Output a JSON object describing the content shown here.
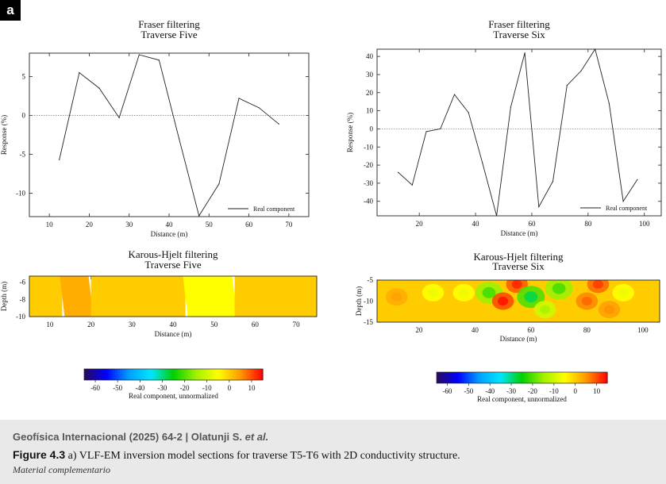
{
  "panel_label": "a",
  "chart_data": [
    {
      "type": "line",
      "title": "Fraser filtering",
      "subtitle": "Traverse Five",
      "xlabel": "Distance (m)",
      "ylabel": "Response (%)",
      "xlim": [
        5,
        75
      ],
      "ylim": [
        -13,
        8
      ],
      "xticks": [
        10,
        20,
        30,
        40,
        50,
        60,
        70
      ],
      "yticks": [
        5,
        0,
        -5,
        -10
      ],
      "zero_line": true,
      "legend": "Real component",
      "legend_position": "bottom-right",
      "series": [
        {
          "name": "Real component",
          "x": [
            12.5,
            17.5,
            22.5,
            27.5,
            32.5,
            37.5,
            42.5,
            47.5,
            52.5,
            57.5,
            62.5,
            67.5
          ],
          "y": [
            -5.7,
            5.5,
            3.5,
            -0.3,
            7.8,
            7.1,
            -3.0,
            -12.9,
            -8.8,
            2.2,
            1.0,
            -1.1
          ]
        }
      ]
    },
    {
      "type": "line",
      "title": "Fraser filtering",
      "subtitle": "Traverse Six",
      "xlabel": "Distance (m)",
      "ylabel": "Response (%)",
      "xlim": [
        5,
        106
      ],
      "ylim": [
        -48,
        44
      ],
      "xticks": [
        20,
        40,
        60,
        80,
        100
      ],
      "yticks": [
        40,
        30,
        20,
        10,
        0,
        -10,
        -20,
        -30,
        -40
      ],
      "zero_line": true,
      "legend": "Real component",
      "legend_position": "bottom-right",
      "series": [
        {
          "name": "Real component",
          "x": [
            12.5,
            17.5,
            22.5,
            27.5,
            32.5,
            37.5,
            42.5,
            47.5,
            52.5,
            57.5,
            62.5,
            67.5,
            72.5,
            77.5,
            82.5,
            87.5,
            92.5,
            97.5
          ],
          "y": [
            -24,
            -31,
            -1.5,
            0,
            19,
            9,
            -19,
            -48,
            12,
            42,
            -43,
            -29,
            24,
            32,
            44,
            14,
            -40,
            -28
          ]
        }
      ]
    },
    {
      "type": "heatmap",
      "title": "Karous-Hjelt filtering",
      "subtitle": "Traverse Five",
      "xlabel": "Distance (m)",
      "ylabel": "Depth (m)",
      "xlim": [
        5,
        75
      ],
      "ylim": [
        -10,
        -5.3
      ],
      "xticks": [
        10,
        20,
        30,
        40,
        50,
        60,
        70
      ],
      "yticks": [
        -6,
        -8,
        -10
      ],
      "zones": [
        {
          "x0": 5,
          "x1": 13,
          "value": 0
        },
        {
          "x0": 13,
          "x1": 20,
          "value": 3
        },
        {
          "x0": 20,
          "x1": 43,
          "value": 0
        },
        {
          "x0": 43,
          "x1": 55,
          "value": -5
        },
        {
          "x0": 55,
          "x1": 75,
          "value": 0
        }
      ]
    },
    {
      "type": "heatmap",
      "title": "Karous-Hjelt filtering",
      "subtitle": "Traverse Six",
      "xlabel": "Distance (m)",
      "ylabel": "Depth (m)",
      "xlim": [
        5,
        106
      ],
      "ylim": [
        -15,
        -5
      ],
      "xticks": [
        20,
        40,
        60,
        80,
        100
      ],
      "yticks": [
        -5,
        -10,
        -15
      ],
      "background_value": 0,
      "anomalies": [
        {
          "x": 12,
          "y": -9,
          "value": 3
        },
        {
          "x": 25,
          "y": -8,
          "value": -5
        },
        {
          "x": 36,
          "y": -8,
          "value": -5
        },
        {
          "x": 45,
          "y": -8,
          "value": -15
        },
        {
          "x": 50,
          "y": -10,
          "value": 10
        },
        {
          "x": 55,
          "y": -6,
          "value": 9
        },
        {
          "x": 60,
          "y": -9,
          "value": -20
        },
        {
          "x": 65,
          "y": -12,
          "value": -10
        },
        {
          "x": 70,
          "y": -7,
          "value": -15
        },
        {
          "x": 80,
          "y": -10,
          "value": 6
        },
        {
          "x": 84,
          "y": -6,
          "value": 8
        },
        {
          "x": 88,
          "y": -12,
          "value": 4
        },
        {
          "x": 93,
          "y": -8,
          "value": -5
        }
      ]
    }
  ],
  "colorbars": [
    {
      "label": "Real component, unnormalized",
      "ticks": [
        -60,
        -50,
        -40,
        -30,
        -20,
        -10,
        0,
        10
      ],
      "range": [
        -65,
        15
      ],
      "colors": [
        "#2a0a5c",
        "#0000ff",
        "#00a0ff",
        "#00e5ff",
        "#00d000",
        "#a0f000",
        "#ffff00",
        "#ff9900",
        "#ff0000"
      ]
    },
    {
      "label": "Real component, unnormalized",
      "ticks": [
        -60,
        -50,
        -40,
        -30,
        -20,
        -10,
        0,
        10
      ],
      "range": [
        -65,
        15
      ],
      "colors": [
        "#2a0a5c",
        "#0000ff",
        "#00a0ff",
        "#00e5ff",
        "#00d000",
        "#a0f000",
        "#ffff00",
        "#ff9900",
        "#ff0000"
      ]
    }
  ],
  "caption": {
    "journal": "Geofísica Internacional (2025) 64-2 | Olatunji S.",
    "et_al": "et al.",
    "figure_label": "Figure 4.3",
    "text": "a) VLF-EM inversion model sections for traverse T5-T6 with 2D conductivity structure.",
    "material": "Material complementario"
  },
  "colors": {
    "caption_background": "#e9e9e9",
    "line": "#222222",
    "zero_line": "#777777"
  }
}
